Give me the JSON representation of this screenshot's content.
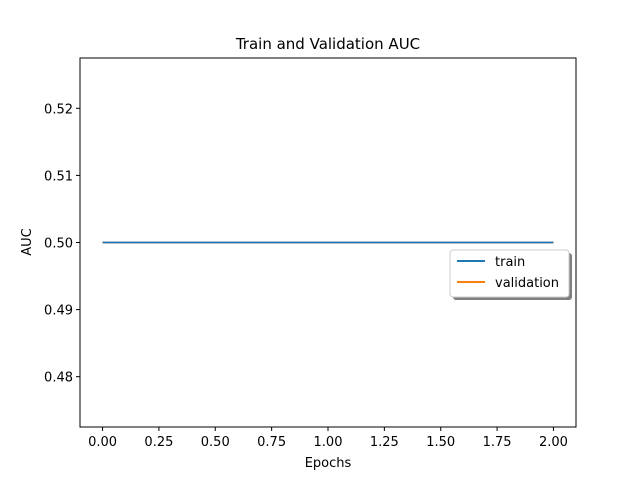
{
  "chart_data": {
    "type": "line",
    "title": "Train and Validation AUC",
    "xlabel": "Epochs",
    "ylabel": "AUC",
    "xlim": [
      -0.1,
      2.1
    ],
    "ylim": [
      0.4725,
      0.5275
    ],
    "xticks": [
      0.0,
      0.25,
      0.5,
      0.75,
      1.0,
      1.25,
      1.5,
      1.75,
      2.0
    ],
    "xtick_labels": [
      "0.00",
      "0.25",
      "0.50",
      "0.75",
      "1.00",
      "1.25",
      "1.50",
      "1.75",
      "2.00"
    ],
    "yticks": [
      0.48,
      0.49,
      0.5,
      0.51,
      0.52
    ],
    "ytick_labels": [
      "0.48",
      "0.49",
      "0.50",
      "0.51",
      "0.52"
    ],
    "grid": false,
    "legend_position": "center-right",
    "series": [
      {
        "name": "train",
        "color": "#1f77b4",
        "x": [
          0,
          1,
          2
        ],
        "y": [
          0.5,
          0.5,
          0.5
        ]
      },
      {
        "name": "validation",
        "color": "#ff7f0e",
        "x": [
          0,
          1,
          2
        ],
        "y": [
          0.5,
          0.5,
          0.5
        ]
      }
    ]
  }
}
